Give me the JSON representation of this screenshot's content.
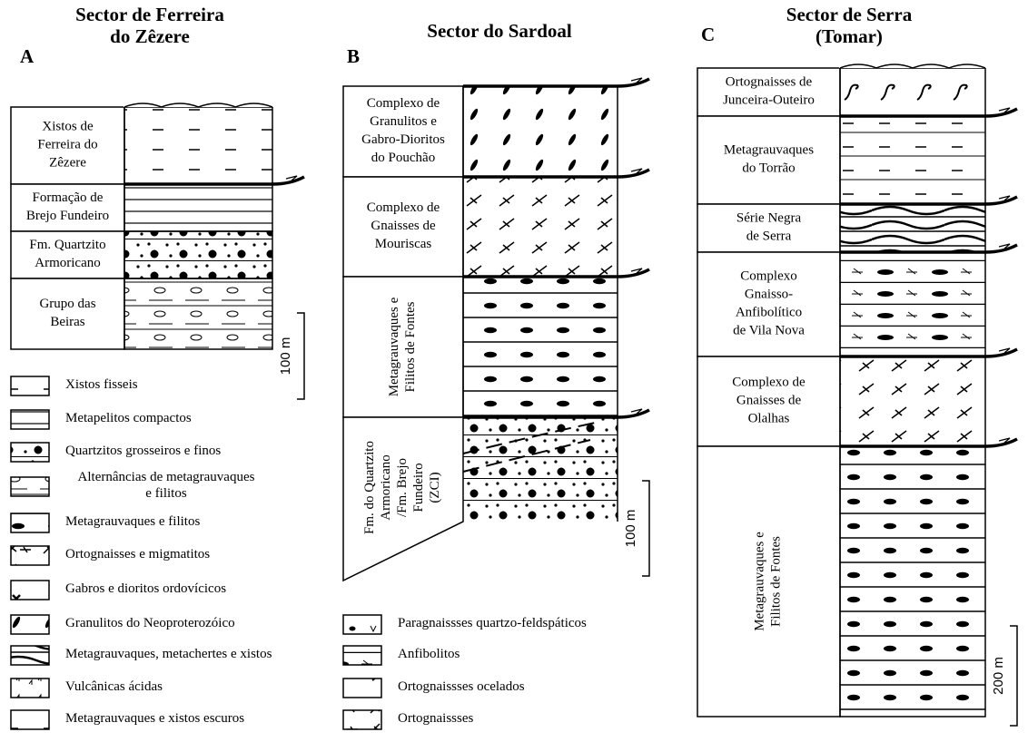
{
  "columns": [
    {
      "title": [
        "Sector de Ferreira",
        "do Zêzere"
      ],
      "letter": "A",
      "units": [
        [
          "Xistos de",
          "Ferreira do",
          "Zêzere"
        ],
        [
          "Formação de",
          "Brejo Fundeiro"
        ],
        [
          "Fm. Quartzito",
          "Armoricano"
        ],
        [
          "Grupo das",
          "Beiras"
        ]
      ],
      "scale": "100 m"
    },
    {
      "title": [
        "Sector do Sardoal"
      ],
      "letter": "B",
      "units": [
        [
          "Complexo de",
          "Granulitos e",
          "Gabro-Dioritos",
          "do Pouchão"
        ],
        [
          "Complexo de",
          "Gnaisses de",
          "Mouriscas"
        ],
        [
          "Metagrauvaques e",
          "Filitos de Fontes"
        ],
        [
          "Fm. do Quartzito",
          "Armoricano",
          "/Fm. Brejo",
          "Fundeiro",
          "(ZCI)"
        ]
      ],
      "scale": "100 m"
    },
    {
      "title": [
        "Sector de Serra",
        "(Tomar)"
      ],
      "letter": "C",
      "units": [
        [
          "Ortognaisses de",
          "Junceira-Outeiro"
        ],
        [
          "Metagrauvaques",
          "do Torrão"
        ],
        [
          "Série Negra",
          "de Serra"
        ],
        [
          "Complexo",
          "Gnaisso-",
          "Anfibolítico",
          "de Vila Nova"
        ],
        [
          "Complexo de",
          "Gnaisses de",
          "Olalhas"
        ],
        [
          "Metagrauvaques e",
          "Filitos de Fontes"
        ]
      ],
      "scale": "200 m"
    }
  ],
  "legend": [
    [
      "Xistos fisseis"
    ],
    [
      "Metapelitos compactos"
    ],
    [
      "Quartzitos grosseiros e finos"
    ],
    [
      "Alternâncias de metagrauvaques",
      "e filitos"
    ],
    [
      "Metagrauvaques e filitos"
    ],
    [
      "Ortognaisses e migmatitos"
    ],
    [
      "Gabros e dioritos ordovícicos"
    ],
    [
      "Granulitos do Neoproterozóico"
    ],
    [
      "Metagrauvaques, metachertes e xistos"
    ],
    [
      "Vulcânicas ácidas"
    ],
    [
      "Metagrauvaques e xistos escuros"
    ],
    [
      "Paragnaissses quartzo-feldspáticos"
    ],
    [
      "Anfibolitos"
    ],
    [
      "Ortognaissses ocelados"
    ],
    [
      "Ortognaissses"
    ]
  ]
}
